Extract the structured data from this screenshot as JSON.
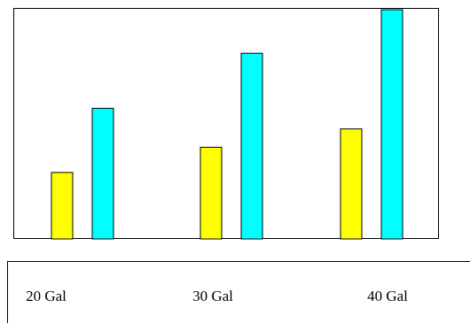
{
  "colors": {
    "series_a": "#ffff00",
    "series_b": "#00ffff",
    "outline": "#000000"
  },
  "chart_data": {
    "type": "bar",
    "title": "",
    "xlabel": "",
    "ylabel": "",
    "categories": [
      "20 Gal",
      "30 Gal",
      "40 Gal"
    ],
    "series": [
      {
        "values": [
          29,
          40,
          48
        ]
      },
      {
        "values": [
          57,
          81,
          100
        ]
      }
    ],
    "ylim": [
      0,
      100
    ],
    "grid": false,
    "legend": "none"
  }
}
